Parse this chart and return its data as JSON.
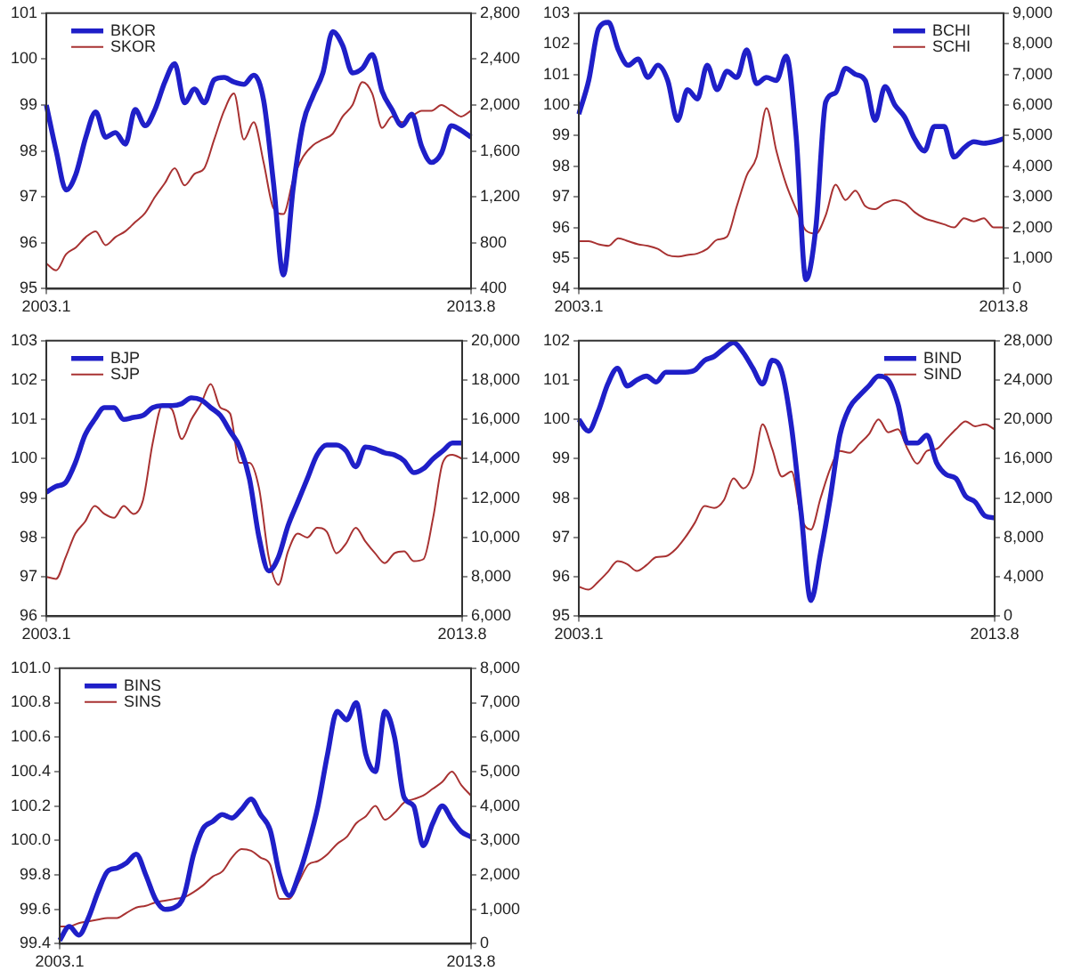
{
  "chart_data": [
    {
      "type": "line",
      "legend": "top left",
      "categories": [
        "2003.1",
        null,
        null,
        null,
        null,
        null,
        null,
        null,
        null,
        null,
        null,
        null,
        null,
        null,
        null,
        null,
        null,
        null,
        null,
        null,
        null,
        null,
        null,
        null,
        null,
        null,
        null,
        null,
        null,
        null,
        null,
        null,
        null,
        null,
        null,
        null,
        null,
        null,
        null,
        null,
        null,
        null,
        null,
        "2013.8"
      ],
      "ylim": [
        95,
        101
      ],
      "yticks": [
        95,
        96,
        97,
        98,
        99,
        100,
        101
      ],
      "y2lim": [
        400,
        2800
      ],
      "y2ticks": [
        400,
        800,
        {
          "value": 1200,
          "label": "1,200"
        },
        {
          "value": 1600,
          "label": "1,600"
        },
        {
          "value": 2000,
          "label": "2,000"
        },
        {
          "value": 2400,
          "label": "2,400"
        },
        {
          "value": 2800,
          "label": "2,800"
        }
      ],
      "series": [
        {
          "name": "BKOR",
          "color": "#1f1fc8",
          "values": [
            99.0,
            98.0,
            97.15,
            97.5,
            98.3,
            98.85,
            98.3,
            98.4,
            98.15,
            98.9,
            98.55,
            98.9,
            99.5,
            99.9,
            99.05,
            99.35,
            99.05,
            99.55,
            99.6,
            99.5,
            99.45,
            99.65,
            99.1,
            97.3,
            95.3,
            97.2,
            98.6,
            99.2,
            99.7,
            100.6,
            100.3,
            99.7,
            99.8,
            100.1,
            99.3,
            98.9,
            98.55,
            98.8,
            98.1,
            97.75,
            97.95,
            98.55,
            98.45,
            98.3
          ]
        },
        {
          "name": "SKOR",
          "color": "#a83232",
          "axis": "y2",
          "values": [
            620,
            560,
            700,
            760,
            850,
            900,
            780,
            850,
            900,
            980,
            1060,
            1200,
            1320,
            1450,
            1300,
            1400,
            1450,
            1700,
            1950,
            2100,
            1700,
            1850,
            1500,
            1100,
            1050,
            1350,
            1550,
            1650,
            1700,
            1750,
            1900,
            2000,
            2200,
            2100,
            1800,
            1900,
            1850,
            1900,
            1950,
            1950,
            2000,
            1950,
            1900,
            1950
          ]
        }
      ]
    },
    {
      "type": "line",
      "legend": "top right",
      "categories": [
        "2003.1",
        null,
        null,
        null,
        null,
        null,
        null,
        null,
        null,
        null,
        null,
        null,
        null,
        null,
        null,
        null,
        null,
        null,
        null,
        null,
        null,
        null,
        null,
        null,
        null,
        null,
        null,
        null,
        null,
        null,
        null,
        null,
        null,
        null,
        null,
        null,
        null,
        null,
        null,
        null,
        null,
        null,
        null,
        "2013.8"
      ],
      "ylim": [
        94,
        103
      ],
      "yticks": [
        94,
        95,
        96,
        97,
        98,
        99,
        100,
        101,
        102,
        103
      ],
      "y2lim": [
        0,
        9000
      ],
      "y2ticks": [
        0,
        {
          "value": 1000,
          "label": "1,000"
        },
        {
          "value": 2000,
          "label": "2,000"
        },
        {
          "value": 3000,
          "label": "3,000"
        },
        {
          "value": 4000,
          "label": "4,000"
        },
        {
          "value": 5000,
          "label": "5,000"
        },
        {
          "value": 6000,
          "label": "6,000"
        },
        {
          "value": 7000,
          "label": "7,000"
        },
        {
          "value": 8000,
          "label": "8,000"
        },
        {
          "value": 9000,
          "label": "9,000"
        }
      ],
      "series": [
        {
          "name": "BCHI",
          "color": "#1f1fc8",
          "values": [
            99.7,
            100.8,
            102.5,
            102.7,
            101.8,
            101.3,
            101.5,
            100.9,
            101.3,
            100.8,
            99.5,
            100.5,
            100.2,
            101.3,
            100.5,
            101.1,
            100.9,
            101.8,
            100.7,
            100.9,
            100.8,
            101.6,
            99.0,
            94.3,
            96.0,
            100.1,
            100.4,
            101.2,
            101.0,
            100.8,
            99.5,
            100.6,
            100.0,
            99.6,
            98.9,
            98.5,
            99.3,
            99.3,
            98.3,
            98.6,
            98.8,
            98.75,
            98.8,
            98.9
          ]
        },
        {
          "name": "SCHI",
          "color": "#a83232",
          "axis": "y2",
          "values": [
            1550,
            1550,
            1450,
            1400,
            1650,
            1550,
            1450,
            1400,
            1300,
            1100,
            1050,
            1100,
            1150,
            1300,
            1600,
            1700,
            2700,
            3700,
            4300,
            5900,
            4500,
            3400,
            2600,
            1900,
            1800,
            2400,
            3400,
            2900,
            3200,
            2700,
            2600,
            2800,
            2900,
            2800,
            2500,
            2300,
            2200,
            2100,
            2000,
            2300,
            2200,
            2300,
            2000,
            2000
          ]
        }
      ]
    },
    {
      "type": "line",
      "legend": "top left",
      "categories": [
        "2003.1",
        null,
        null,
        null,
        null,
        null,
        null,
        null,
        null,
        null,
        null,
        null,
        null,
        null,
        null,
        null,
        null,
        null,
        null,
        null,
        null,
        null,
        null,
        null,
        null,
        null,
        null,
        null,
        null,
        null,
        null,
        null,
        null,
        null,
        null,
        null,
        null,
        null,
        null,
        null,
        null,
        null,
        null,
        "2013.8"
      ],
      "ylim": [
        96,
        103
      ],
      "yticks": [
        96,
        97,
        98,
        99,
        100,
        101,
        102,
        103
      ],
      "y2lim": [
        6000,
        20000
      ],
      "y2ticks": [
        {
          "value": 6000,
          "label": "6,000"
        },
        {
          "value": 8000,
          "label": "8,000"
        },
        {
          "value": 10000,
          "label": "10,000"
        },
        {
          "value": 12000,
          "label": "12,000"
        },
        {
          "value": 14000,
          "label": "14,000"
        },
        {
          "value": 16000,
          "label": "16,000"
        },
        {
          "value": 18000,
          "label": "18,000"
        },
        {
          "value": 20000,
          "label": "20,000"
        }
      ],
      "series": [
        {
          "name": "BJP",
          "color": "#1f1fc8",
          "values": [
            99.15,
            99.3,
            99.4,
            99.9,
            100.6,
            101.0,
            101.3,
            101.3,
            101.0,
            101.05,
            101.1,
            101.3,
            101.35,
            101.35,
            101.4,
            101.55,
            101.5,
            101.3,
            101.1,
            100.7,
            100.3,
            99.5,
            98.0,
            97.15,
            97.5,
            98.3,
            98.9,
            99.5,
            100.1,
            100.35,
            100.35,
            100.2,
            99.8,
            100.3,
            100.25,
            100.15,
            100.1,
            99.95,
            99.65,
            99.75,
            100.0,
            100.2,
            100.4,
            100.4
          ]
        },
        {
          "name": "SJP",
          "color": "#a83232",
          "axis": "y2",
          "values": [
            8000,
            7900,
            9000,
            10200,
            10800,
            11600,
            11200,
            11000,
            11600,
            11200,
            11900,
            14800,
            16700,
            16500,
            15000,
            16000,
            16800,
            17800,
            16600,
            16300,
            13800,
            13800,
            12500,
            9000,
            7600,
            9300,
            10200,
            10000,
            10500,
            10300,
            9200,
            9700,
            10500,
            9800,
            9200,
            8700,
            9200,
            9300,
            8800,
            8900,
            11000,
            13800,
            14200,
            14000
          ]
        }
      ]
    },
    {
      "type": "line",
      "legend": "top right",
      "categories": [
        "2003.1",
        null,
        null,
        null,
        null,
        null,
        null,
        null,
        null,
        null,
        null,
        null,
        null,
        null,
        null,
        null,
        null,
        null,
        null,
        null,
        null,
        null,
        null,
        null,
        null,
        null,
        null,
        null,
        null,
        null,
        null,
        null,
        null,
        null,
        null,
        null,
        null,
        null,
        null,
        null,
        null,
        null,
        null,
        "2013.8"
      ],
      "ylim": [
        95,
        102
      ],
      "yticks": [
        95,
        96,
        97,
        98,
        99,
        100,
        101,
        102
      ],
      "y2lim": [
        0,
        28000
      ],
      "y2ticks": [
        0,
        {
          "value": 4000,
          "label": "4,000"
        },
        {
          "value": 8000,
          "label": "8,000"
        },
        {
          "value": 12000,
          "label": "12,000"
        },
        {
          "value": 16000,
          "label": "16,000"
        },
        {
          "value": 20000,
          "label": "20,000"
        },
        {
          "value": 24000,
          "label": "24,000"
        },
        {
          "value": 28000,
          "label": "28,000"
        }
      ],
      "series": [
        {
          "name": "BIND",
          "color": "#1f1fc8",
          "values": [
            100.0,
            99.7,
            100.2,
            100.9,
            101.3,
            100.85,
            101.0,
            101.1,
            100.95,
            101.2,
            101.2,
            101.2,
            101.25,
            101.5,
            101.6,
            101.8,
            101.95,
            101.7,
            101.3,
            100.9,
            101.5,
            101.2,
            99.8,
            97.6,
            95.4,
            96.6,
            98.0,
            99.6,
            100.3,
            100.6,
            100.85,
            101.1,
            101.0,
            100.4,
            99.4,
            99.4,
            99.6,
            98.9,
            98.6,
            98.5,
            98.05,
            97.9,
            97.55,
            97.5
          ]
        },
        {
          "name": "SIND",
          "color": "#a83232",
          "axis": "y2",
          "values": [
            3000,
            2700,
            3500,
            4500,
            5600,
            5300,
            4600,
            5200,
            6000,
            6100,
            6800,
            8000,
            9500,
            11200,
            11000,
            11800,
            14000,
            13000,
            14500,
            19500,
            17000,
            14200,
            14700,
            10000,
            8800,
            12000,
            15000,
            16800,
            16600,
            17500,
            18500,
            20000,
            18700,
            19000,
            17000,
            15500,
            16800,
            17000,
            18000,
            19000,
            19800,
            19300,
            19500,
            19000
          ]
        }
      ]
    },
    {
      "type": "line",
      "legend": "top left",
      "categories": [
        "2003.1",
        null,
        null,
        null,
        null,
        null,
        null,
        null,
        null,
        null,
        null,
        null,
        null,
        null,
        null,
        null,
        null,
        null,
        null,
        null,
        null,
        null,
        null,
        null,
        null,
        null,
        null,
        null,
        null,
        null,
        null,
        null,
        null,
        null,
        null,
        null,
        null,
        null,
        null,
        null,
        null,
        null,
        null,
        "2013.8"
      ],
      "ylim": [
        99.4,
        101.0
      ],
      "yticks": [
        99.4,
        99.6,
        99.8,
        {
          "value": 100.0,
          "label": "100.0"
        },
        100.2,
        100.4,
        100.6,
        100.8,
        {
          "value": 101.0,
          "label": "101.0"
        }
      ],
      "y2lim": [
        0,
        8000
      ],
      "y2ticks": [
        0,
        {
          "value": 1000,
          "label": "1,000"
        },
        {
          "value": 2000,
          "label": "2,000"
        },
        {
          "value": 3000,
          "label": "3,000"
        },
        {
          "value": 4000,
          "label": "4,000"
        },
        {
          "value": 5000,
          "label": "5,000"
        },
        {
          "value": 6000,
          "label": "6,000"
        },
        {
          "value": 7000,
          "label": "7,000"
        },
        {
          "value": 8000,
          "label": "8,000"
        }
      ],
      "series": [
        {
          "name": "BINS",
          "color": "#1f1fc8",
          "values": [
            99.42,
            99.5,
            99.45,
            99.55,
            99.7,
            99.82,
            99.84,
            99.87,
            99.92,
            99.8,
            99.66,
            99.6,
            99.61,
            99.68,
            99.92,
            100.07,
            100.11,
            100.15,
            100.13,
            100.18,
            100.24,
            100.15,
            100.06,
            99.8,
            99.68,
            99.8,
            99.98,
            100.2,
            100.5,
            100.75,
            100.7,
            100.8,
            100.5,
            100.4,
            100.75,
            100.6,
            100.25,
            100.2,
            99.97,
            100.1,
            100.2,
            100.12,
            100.05,
            100.02
          ]
        },
        {
          "name": "SINS",
          "color": "#a83232",
          "axis": "y2",
          "values": [
            500,
            500,
            600,
            650,
            700,
            750,
            750,
            900,
            1050,
            1100,
            1200,
            1250,
            1300,
            1350,
            1500,
            1700,
            1950,
            2100,
            2500,
            2750,
            2700,
            2500,
            2300,
            1300,
            1300,
            1800,
            2300,
            2400,
            2600,
            2900,
            3100,
            3500,
            3700,
            4000,
            3600,
            3800,
            4100,
            4200,
            4300,
            4500,
            4700,
            5000,
            4600,
            4300
          ]
        }
      ]
    }
  ]
}
